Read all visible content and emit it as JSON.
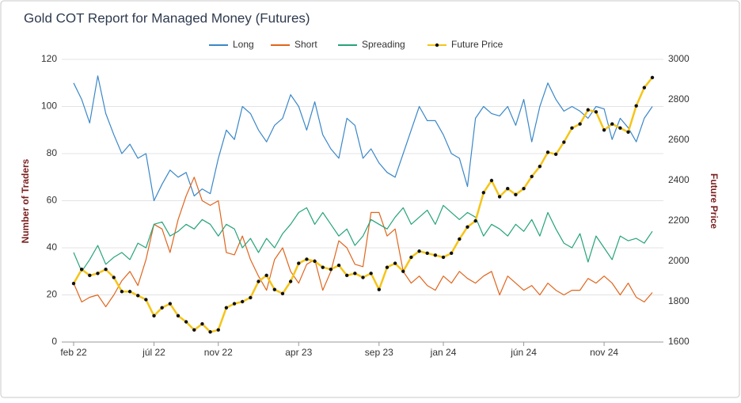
{
  "chart_data": {
    "type": "line",
    "title": "Gold COT Report for Managed Money (Futures)",
    "ylabel": "Number of Traders",
    "y2label": "Future Price",
    "categories": [
      "feb 22",
      null,
      null,
      null,
      null,
      null,
      null,
      null,
      null,
      null,
      "júl 22",
      null,
      null,
      null,
      null,
      null,
      null,
      null,
      "nov 22",
      null,
      null,
      null,
      null,
      null,
      null,
      null,
      null,
      null,
      "apr 23",
      null,
      null,
      null,
      null,
      null,
      null,
      null,
      null,
      null,
      "sep 23",
      null,
      null,
      null,
      null,
      null,
      null,
      null,
      "jan 24",
      null,
      null,
      null,
      null,
      null,
      null,
      null,
      null,
      null,
      "jún 24",
      null,
      null,
      null,
      null,
      null,
      null,
      null,
      null,
      null,
      "nov 24",
      null,
      null,
      null,
      null,
      null,
      null
    ],
    "series": [
      {
        "name": "Long",
        "color": "#3a87c8",
        "values": [
          110,
          103,
          93,
          113,
          97,
          88,
          80,
          84,
          78,
          80,
          60,
          67,
          73,
          70,
          72,
          62,
          65,
          63,
          78,
          90,
          86,
          100,
          97,
          90,
          85,
          92,
          95,
          105,
          100,
          90,
          102,
          88,
          82,
          78,
          95,
          92,
          78,
          82,
          76,
          72,
          70,
          80,
          90,
          100,
          94,
          94,
          88,
          80,
          78,
          66,
          95,
          100,
          97,
          96,
          100,
          92,
          103,
          85,
          100,
          110,
          103,
          98,
          100,
          98,
          95,
          100,
          99,
          86,
          95,
          91,
          85,
          95,
          100
        ]
      },
      {
        "name": "Short",
        "color": "#e0651d",
        "values": [
          25,
          17,
          19,
          20,
          15,
          20,
          26,
          30,
          24,
          35,
          50,
          48,
          38,
          52,
          62,
          70,
          60,
          58,
          60,
          38,
          37,
          45,
          35,
          28,
          22,
          35,
          40,
          30,
          25,
          33,
          35,
          22,
          30,
          43,
          40,
          33,
          32,
          55,
          55,
          45,
          48,
          30,
          25,
          28,
          24,
          22,
          28,
          25,
          30,
          27,
          25,
          28,
          30,
          20,
          28,
          25,
          22,
          24,
          20,
          25,
          22,
          20,
          22,
          22,
          27,
          25,
          28,
          25,
          20,
          25,
          19,
          17,
          21
        ]
      },
      {
        "name": "Spreading",
        "color": "#26a37a",
        "values": [
          38,
          30,
          35,
          41,
          33,
          36,
          38,
          35,
          42,
          40,
          50,
          51,
          45,
          47,
          50,
          48,
          52,
          50,
          45,
          50,
          48,
          40,
          44,
          38,
          44,
          40,
          46,
          50,
          55,
          57,
          50,
          55,
          50,
          45,
          48,
          41,
          45,
          52,
          50,
          48,
          53,
          57,
          50,
          53,
          56,
          50,
          58,
          55,
          52,
          55,
          53,
          45,
          50,
          48,
          45,
          50,
          47,
          52,
          45,
          55,
          48,
          42,
          40,
          46,
          34,
          45,
          40,
          35,
          45,
          43,
          44,
          42,
          47
        ]
      },
      {
        "name": "Future Price",
        "color": "#f5c518",
        "marker_color": "#111111",
        "axis": "y2",
        "values": [
          1890,
          1960,
          1930,
          1940,
          1960,
          1920,
          1850,
          1850,
          1830,
          1810,
          1730,
          1770,
          1790,
          1730,
          1700,
          1660,
          1690,
          1650,
          1660,
          1770,
          1790,
          1800,
          1820,
          1900,
          1930,
          1860,
          1840,
          1900,
          1990,
          2010,
          2000,
          1970,
          1960,
          1980,
          1930,
          1940,
          1920,
          1940,
          1860,
          1970,
          1990,
          1950,
          2020,
          2050,
          2040,
          2030,
          2020,
          2040,
          2110,
          2170,
          2200,
          2340,
          2400,
          2320,
          2360,
          2330,
          2360,
          2420,
          2470,
          2540,
          2530,
          2590,
          2660,
          2680,
          2750,
          2740,
          2650,
          2680,
          2660,
          2640,
          2770,
          2860,
          2910
        ]
      }
    ],
    "ylim": [
      0,
      120
    ],
    "yticks": [
      0,
      20,
      40,
      60,
      80,
      100,
      120
    ],
    "y2lim": [
      1600,
      3000
    ],
    "y2ticks": [
      1600,
      1800,
      2000,
      2200,
      2400,
      2600,
      2800,
      3000
    ],
    "grid": true,
    "legend": "top"
  }
}
